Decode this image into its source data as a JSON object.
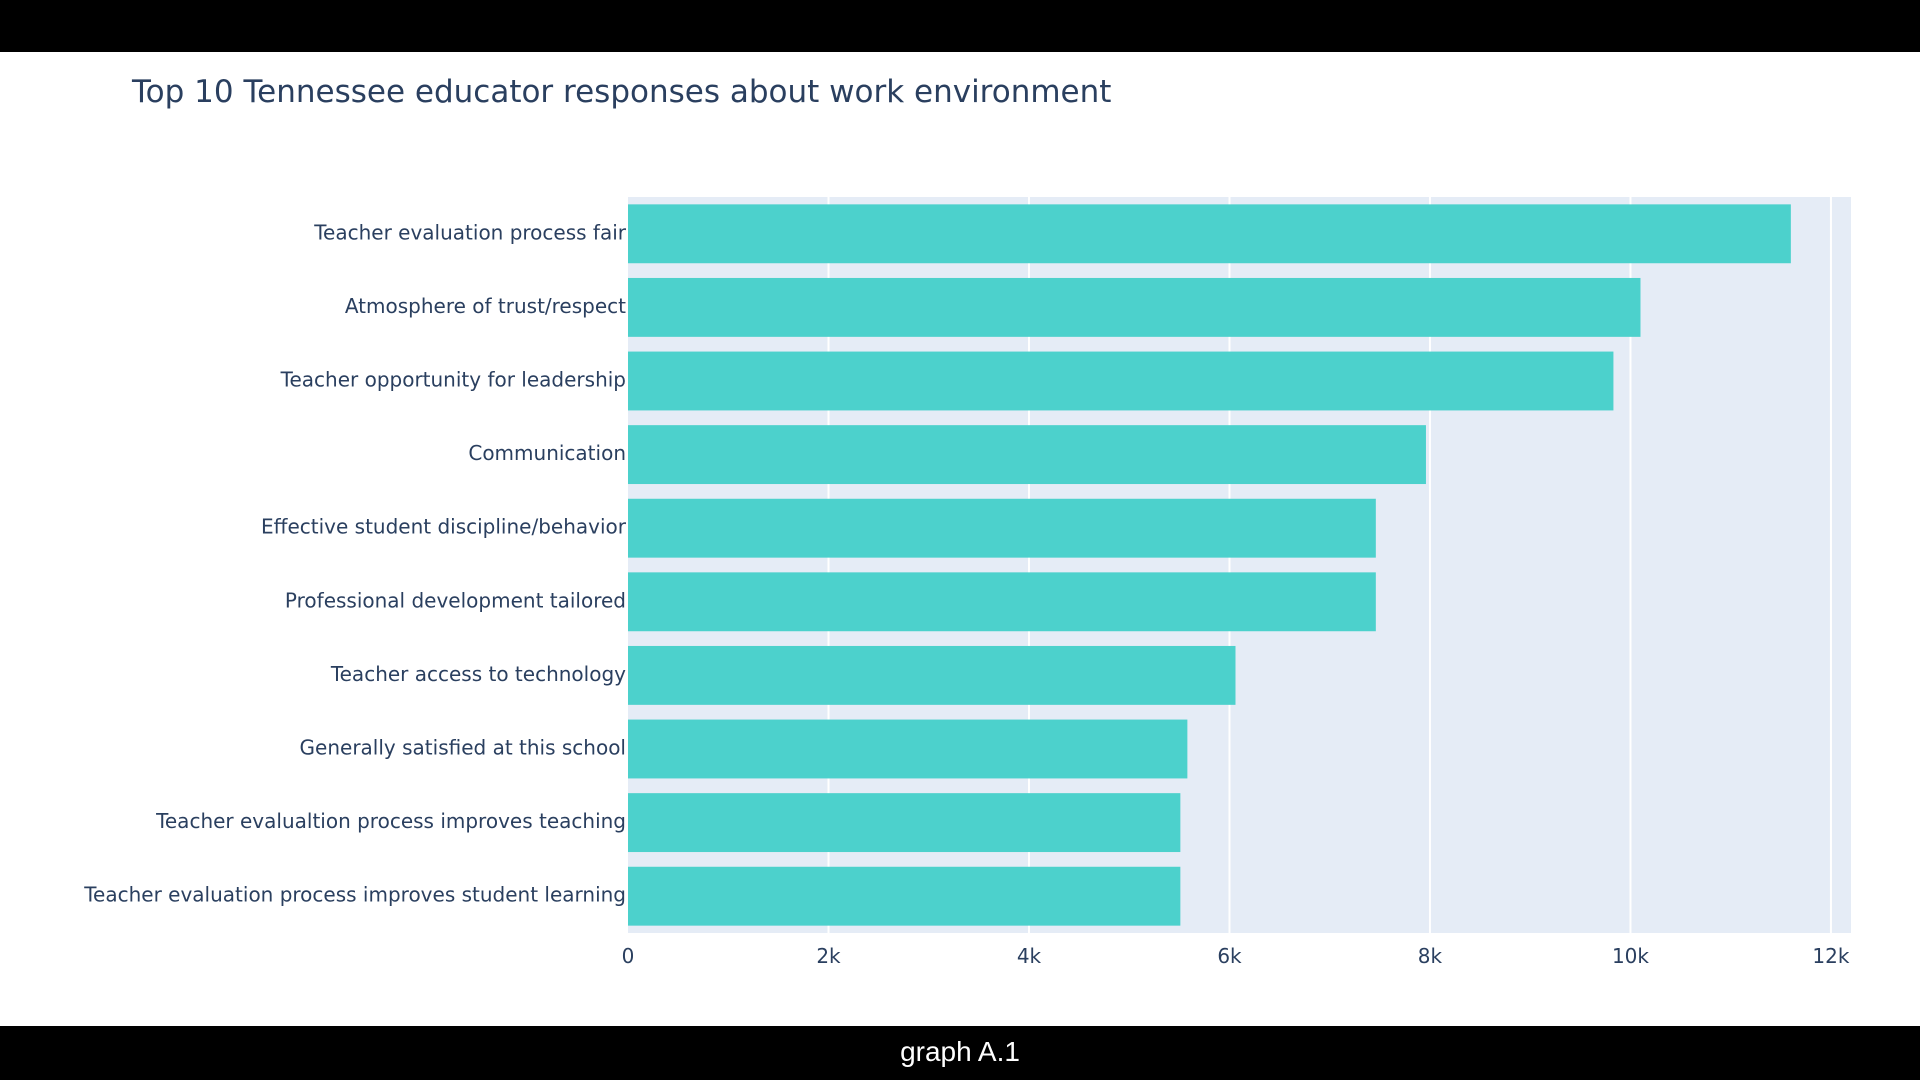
{
  "caption": "graph A.1",
  "chart_data": {
    "type": "bar",
    "orientation": "horizontal",
    "title": "Top 10 Tennessee educator responses about work environment",
    "xlabel": "",
    "ylabel": "",
    "categories": [
      "Teacher evaluation process fair",
      "Atmosphere of trust/respect",
      "Teacher opportunity for leadership",
      "Communication",
      "Effective student discipline/behavior",
      "Professional development tailored",
      "Teacher access to technology",
      "Generally satisfied at this school",
      "Teacher evalualtion process improves teaching",
      "Teacher evaluation process improves student learning"
    ],
    "values": [
      11600,
      10100,
      9830,
      7960,
      7460,
      7460,
      6060,
      5580,
      5510,
      5510
    ],
    "xlim": [
      0,
      12200
    ],
    "xticks": [
      0,
      2000,
      4000,
      6000,
      8000,
      10000,
      12000
    ],
    "xtick_labels": [
      "0",
      "2k",
      "4k",
      "6k",
      "8k",
      "10k",
      "12k"
    ],
    "grid": true,
    "legend": "none",
    "colors": {
      "bar": "#4cd1cc",
      "plot_background": "#e5ecf6",
      "grid": "#ffffff",
      "text": "#2a3f5f"
    }
  }
}
